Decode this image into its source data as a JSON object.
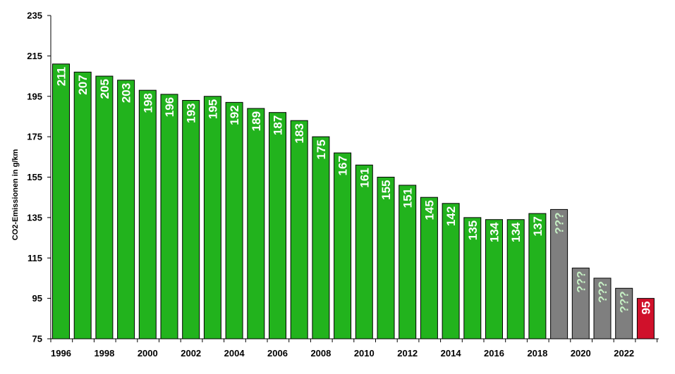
{
  "colors": {
    "bar_measured": "#22b31d",
    "bar_unknown": "#7f7f7f",
    "bar_target": "#d0112b",
    "label_light": "#ffffff",
    "label_unknown": "#c6f0c4",
    "axis": "#000000"
  },
  "chart_data": {
    "type": "bar",
    "title": "",
    "ylabel": "CO2-Emissionen in g/km",
    "xlabel": "",
    "ylim": [
      75,
      235
    ],
    "yticks": [
      75,
      95,
      115,
      135,
      155,
      175,
      195,
      215,
      235
    ],
    "grid": false,
    "legend": "none",
    "xtick_labels": [
      "1996",
      "1998",
      "2000",
      "2002",
      "2004",
      "2006",
      "2008",
      "2010",
      "2012",
      "2014",
      "2016",
      "2018",
      "2020",
      "2022"
    ],
    "bars": [
      {
        "year": 1996,
        "value": 211,
        "label": "211",
        "kind": "measured"
      },
      {
        "year": 1997,
        "value": 207,
        "label": "207",
        "kind": "measured"
      },
      {
        "year": 1998,
        "value": 205,
        "label": "205",
        "kind": "measured"
      },
      {
        "year": 1999,
        "value": 203,
        "label": "203",
        "kind": "measured"
      },
      {
        "year": 2000,
        "value": 198,
        "label": "198",
        "kind": "measured"
      },
      {
        "year": 2001,
        "value": 196,
        "label": "196",
        "kind": "measured"
      },
      {
        "year": 2002,
        "value": 193,
        "label": "193",
        "kind": "measured"
      },
      {
        "year": 2003,
        "value": 195,
        "label": "195",
        "kind": "measured"
      },
      {
        "year": 2004,
        "value": 192,
        "label": "192",
        "kind": "measured"
      },
      {
        "year": 2005,
        "value": 189,
        "label": "189",
        "kind": "measured"
      },
      {
        "year": 2006,
        "value": 187,
        "label": "187",
        "kind": "measured"
      },
      {
        "year": 2007,
        "value": 183,
        "label": "183",
        "kind": "measured"
      },
      {
        "year": 2008,
        "value": 175,
        "label": "175",
        "kind": "measured"
      },
      {
        "year": 2009,
        "value": 167,
        "label": "167",
        "kind": "measured"
      },
      {
        "year": 2010,
        "value": 161,
        "label": "161",
        "kind": "measured"
      },
      {
        "year": 2011,
        "value": 155,
        "label": "155",
        "kind": "measured"
      },
      {
        "year": 2012,
        "value": 151,
        "label": "151",
        "kind": "measured"
      },
      {
        "year": 2013,
        "value": 145,
        "label": "145",
        "kind": "measured"
      },
      {
        "year": 2014,
        "value": 142,
        "label": "142",
        "kind": "measured"
      },
      {
        "year": 2015,
        "value": 135,
        "label": "135",
        "kind": "measured"
      },
      {
        "year": 2016,
        "value": 134,
        "label": "134",
        "kind": "measured"
      },
      {
        "year": 2017,
        "value": 134,
        "label": "134",
        "kind": "measured"
      },
      {
        "year": 2018,
        "value": 137,
        "label": "137",
        "kind": "measured"
      },
      {
        "year": 2019,
        "value": 139,
        "label": "???",
        "kind": "unknown"
      },
      {
        "year": 2020,
        "value": 110,
        "label": "???",
        "kind": "unknown"
      },
      {
        "year": 2021,
        "value": 105,
        "label": "???",
        "kind": "unknown"
      },
      {
        "year": 2022,
        "value": 100,
        "label": "???",
        "kind": "unknown"
      },
      {
        "year": 2023,
        "value": 95,
        "label": "95",
        "kind": "target"
      }
    ]
  }
}
